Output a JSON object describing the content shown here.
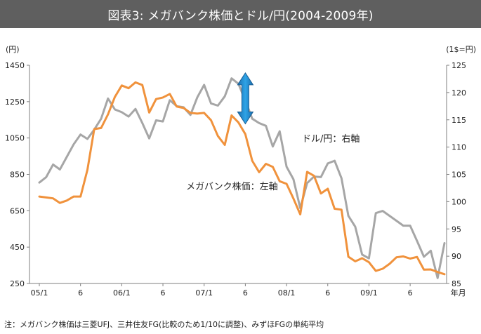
{
  "header": {
    "title": "図表3: メガバンク株価とドル/円(2004-2009年)"
  },
  "footnote": "注：メガバンク株価は三菱UFJ、三井住友FG(比較のため1/10に調整)、みずほFGの単純平均",
  "chart_data": {
    "type": "line",
    "left_axis": {
      "unit_label": "(円)",
      "min": 250,
      "max": 1450,
      "ticks": [
        250,
        450,
        650,
        850,
        1050,
        1250,
        1450
      ],
      "tick_labels": [
        "250",
        "450",
        "650",
        "850",
        "1050",
        "1250",
        "1450"
      ]
    },
    "right_axis": {
      "unit_label": "(1$=円)",
      "min": 85,
      "max": 125,
      "ticks": [
        85,
        90,
        95,
        100,
        105,
        110,
        115,
        120,
        125
      ],
      "tick_labels": [
        "85",
        "90",
        "95",
        "100",
        "105",
        "110",
        "115",
        "120",
        "125"
      ]
    },
    "x_axis": {
      "labels": [
        {
          "month": 0,
          "label": "05/1"
        },
        {
          "month": 6,
          "label": "6"
        },
        {
          "month": 12,
          "label": "06/1"
        },
        {
          "month": 18,
          "label": "6"
        },
        {
          "month": 24,
          "label": "07/1"
        },
        {
          "month": 30,
          "label": "6"
        },
        {
          "month": 36,
          "label": "08/1"
        },
        {
          "month": 42,
          "label": "6"
        },
        {
          "month": 48,
          "label": "09/1"
        },
        {
          "month": 54,
          "label": "6"
        }
      ],
      "unit_label": "年月",
      "max_month": 61
    },
    "series": [
      {
        "name": "メガバンク株価",
        "axis": "left",
        "color": "#f0923c",
        "annotation": "メガバンク株価：左軸",
        "values": [
          728,
          723,
          718,
          693,
          706,
          728,
          728,
          875,
          1099,
          1105,
          1180,
          1276,
          1339,
          1324,
          1356,
          1341,
          1190,
          1264,
          1273,
          1292,
          1223,
          1215,
          1188,
          1184,
          1188,
          1148,
          1061,
          1012,
          1174,
          1135,
          1071,
          925,
          862,
          908,
          891,
          812,
          798,
          717,
          630,
          864,
          842,
          745,
          771,
          661,
          656,
          397,
          372,
          389,
          367,
          319,
          331,
          358,
          394,
          399,
          387,
          396,
          326,
          327,
          313,
          301
        ]
      },
      {
        "name": "ドル/円",
        "axis": "right",
        "color": "#a6a6a6",
        "annotation": "ドル/円：右軸",
        "values": [
          103.5,
          104.5,
          106.8,
          105.9,
          108.2,
          110.5,
          112.3,
          111.5,
          113.2,
          115.2,
          118.9,
          116.9,
          116.4,
          115.6,
          117.0,
          114.4,
          111.6,
          114.9,
          114.7,
          118.6,
          117.5,
          117.3,
          115.9,
          119.1,
          121.4,
          118.0,
          117.6,
          119.3,
          122.6,
          121.6,
          118.5,
          115.2,
          114.4,
          113.9,
          110.1,
          112.9,
          106.4,
          104.1,
          98.8,
          103.4,
          104.6,
          104.5,
          107.0,
          107.5,
          104.3,
          97.4,
          95.4,
          90.3,
          89.6,
          97.9,
          98.3,
          97.4,
          96.5,
          95.6,
          95.6,
          92.8,
          89.9,
          91.0,
          86.0,
          92.4
        ]
      }
    ],
    "highlight": {
      "from_month": 30,
      "from_yen": 1408,
      "to_month": 30,
      "to_yen": 1128
    }
  }
}
